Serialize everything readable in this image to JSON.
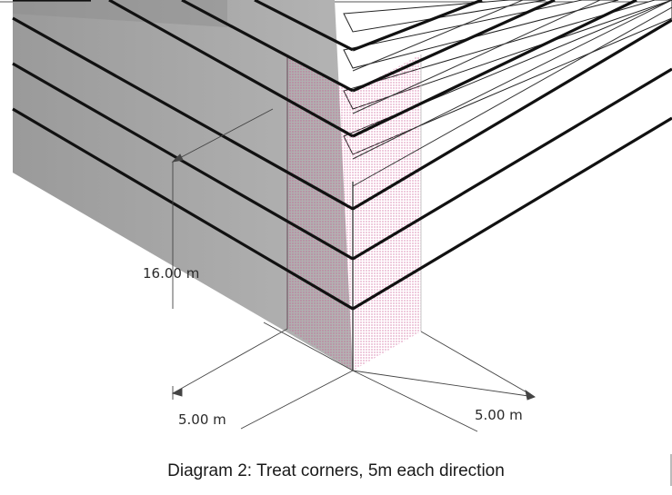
{
  "diagram": {
    "height_dimension": "16.00 m",
    "left_dimension": "5.00 m",
    "right_dimension": "5.00 m",
    "treated_zone_color": "#c9508c"
  },
  "caption": "Diagram 2: Treat corners, 5m each direction"
}
